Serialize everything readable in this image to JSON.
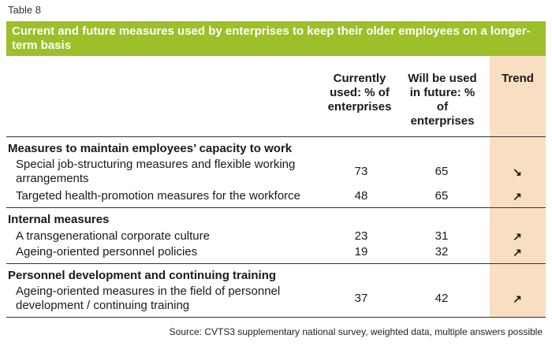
{
  "table_label": "Table 8",
  "title": "Current and future measures used by enterprises to keep their older employees on a longer-term basis",
  "headers": {
    "current": "Currently used: % of enterprises",
    "future": "Will be used in future: % of enterprises",
    "trend": "Trend"
  },
  "sections": [
    {
      "heading": "Measures to maintain employees’ capacity to work",
      "rows": [
        {
          "label": "Special job-structuring measures and flexible working arrangements",
          "current": "73",
          "future": "65",
          "trend": "↘"
        },
        {
          "label": "Targeted health-promotion measures for the workforce",
          "current": "48",
          "future": "65",
          "trend": "↗"
        }
      ]
    },
    {
      "heading": "Internal measures",
      "rows": [
        {
          "label": "A transgenerational corporate culture",
          "current": "23",
          "future": "31",
          "trend": "↗"
        },
        {
          "label": "Ageing-oriented personnel policies",
          "current": "19",
          "future": "32",
          "trend": "↗"
        }
      ]
    },
    {
      "heading": "Personnel development and continuing training",
      "rows": [
        {
          "label": "Ageing-oriented measures in the field of personnel development / continuing training",
          "current": "37",
          "future": "42",
          "trend": "↗"
        }
      ]
    }
  ],
  "source": "Source: CVTS3 supplementary national survey, weighted data, multiple answers possible",
  "colors": {
    "title_bg": "#9cbf2a",
    "trend_bg": "#f8dfc2"
  }
}
